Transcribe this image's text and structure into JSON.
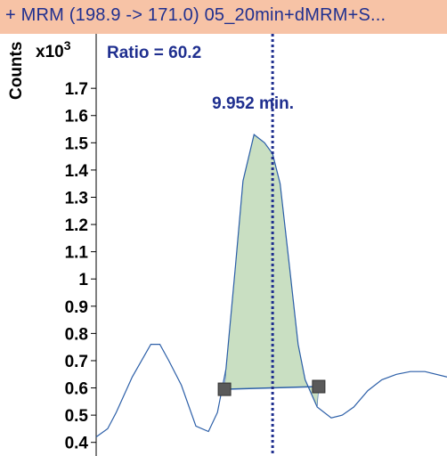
{
  "header": {
    "title": "+ MRM (198.9 -> 171.0) 05_20min+dMRM+S..."
  },
  "chart_data": {
    "type": "line",
    "ylabel": "Counts",
    "y_scale": "x10",
    "y_scale_exponent": "3",
    "ratio_label": "Ratio = 60.2",
    "peak_label": "9.952 min.",
    "peak_time": 9.952,
    "xlim": [
      9.6,
      10.3
    ],
    "ylim": [
      0.35,
      1.9
    ],
    "y_ticks": [
      0.4,
      0.5,
      0.6,
      0.7,
      0.8,
      0.9,
      1,
      1.1,
      1.2,
      1.3,
      1.4,
      1.5,
      1.6,
      1.7
    ],
    "y_tick_labels": [
      "0.4",
      "0.5",
      "0.6",
      "0.7",
      "0.8",
      "0.9",
      "1",
      "1.1",
      "1.2",
      "1.3",
      "1.4",
      "1.5",
      "1.6",
      "1.7"
    ],
    "series": [
      {
        "x": [
          9.6,
          9.623,
          9.64,
          9.672,
          9.709,
          9.727,
          9.745,
          9.77,
          9.799,
          9.824,
          9.842,
          9.859,
          9.878,
          9.893,
          9.915,
          9.936,
          9.952,
          9.967,
          9.986,
          10.003,
          10.017,
          10.041,
          10.069,
          10.091,
          10.114,
          10.142,
          10.17,
          10.199,
          10.227,
          10.256,
          10.3
        ],
        "y": [
          0.42,
          0.45,
          0.51,
          0.64,
          0.76,
          0.76,
          0.7,
          0.61,
          0.46,
          0.44,
          0.51,
          0.67,
          1.05,
          1.36,
          1.53,
          1.5,
          1.46,
          1.35,
          1.04,
          0.76,
          0.63,
          0.53,
          0.49,
          0.5,
          0.53,
          0.59,
          0.63,
          0.65,
          0.66,
          0.66,
          0.64
        ]
      }
    ],
    "integration": {
      "start_x": 9.856,
      "start_y": 0.595,
      "end_x": 10.044,
      "end_y": 0.605
    },
    "colors": {
      "trace": "#2c5fa8",
      "marker_line": "#1f2f8f",
      "fill": "#c9dfc2",
      "header_bg": "#f7c3a6"
    }
  }
}
